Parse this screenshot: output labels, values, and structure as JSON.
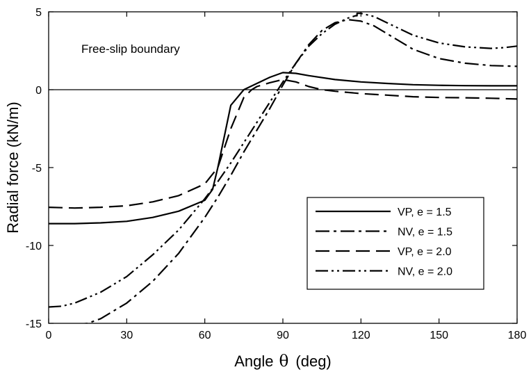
{
  "chart_data": {
    "type": "line",
    "title": "",
    "annotation": "Free-slip boundary",
    "xlabel": {
      "prefix": "Angle",
      "symbol": "θ",
      "suffix": "(deg)"
    },
    "ylabel": "Radial force (kN/m)",
    "xlim": [
      0,
      180
    ],
    "ylim": [
      -15,
      5
    ],
    "xticks": [
      0,
      30,
      60,
      90,
      120,
      150,
      180
    ],
    "yticks": [
      -15,
      -10,
      -5,
      0,
      5
    ],
    "reference_line_y": 0,
    "grid": false,
    "legend_position": "lower-right",
    "series": [
      {
        "name": "VP, e = 1.5",
        "dash": "solid",
        "points": [
          [
            0,
            -8.6
          ],
          [
            10,
            -8.6
          ],
          [
            20,
            -8.55
          ],
          [
            30,
            -8.45
          ],
          [
            40,
            -8.2
          ],
          [
            50,
            -7.8
          ],
          [
            60,
            -7.1
          ],
          [
            63,
            -6.4
          ],
          [
            65,
            -5.0
          ],
          [
            70,
            -1.0
          ],
          [
            75,
            0.0
          ],
          [
            80,
            0.4
          ],
          [
            85,
            0.8
          ],
          [
            90,
            1.1
          ],
          [
            95,
            1.05
          ],
          [
            100,
            0.9
          ],
          [
            110,
            0.65
          ],
          [
            120,
            0.5
          ],
          [
            130,
            0.4
          ],
          [
            140,
            0.32
          ],
          [
            150,
            0.28
          ],
          [
            160,
            0.26
          ],
          [
            170,
            0.25
          ],
          [
            180,
            0.25
          ]
        ]
      },
      {
        "name": "NV, e = 1.5",
        "dash": "dashdot",
        "points": [
          [
            0,
            -15.05
          ],
          [
            5,
            -15.1
          ],
          [
            10,
            -15.1
          ],
          [
            15,
            -15.0
          ],
          [
            20,
            -14.7
          ],
          [
            30,
            -13.7
          ],
          [
            40,
            -12.3
          ],
          [
            50,
            -10.5
          ],
          [
            60,
            -8.2
          ],
          [
            65,
            -6.9
          ],
          [
            70,
            -5.5
          ],
          [
            75,
            -4.0
          ],
          [
            80,
            -2.6
          ],
          [
            85,
            -1.2
          ],
          [
            90,
            0.3
          ],
          [
            95,
            1.7
          ],
          [
            100,
            2.9
          ],
          [
            105,
            3.8
          ],
          [
            110,
            4.3
          ],
          [
            115,
            4.5
          ],
          [
            120,
            4.4
          ],
          [
            125,
            4.1
          ],
          [
            130,
            3.6
          ],
          [
            140,
            2.6
          ],
          [
            150,
            2.0
          ],
          [
            160,
            1.7
          ],
          [
            170,
            1.55
          ],
          [
            180,
            1.5
          ]
        ]
      },
      {
        "name": "VP, e = 2.0",
        "dash": "longdash",
        "points": [
          [
            0,
            -7.55
          ],
          [
            10,
            -7.6
          ],
          [
            20,
            -7.55
          ],
          [
            30,
            -7.45
          ],
          [
            40,
            -7.2
          ],
          [
            50,
            -6.8
          ],
          [
            60,
            -6.05
          ],
          [
            65,
            -5.0
          ],
          [
            70,
            -2.5
          ],
          [
            75,
            -0.5
          ],
          [
            78,
            0.0
          ],
          [
            80,
            0.2
          ],
          [
            85,
            0.45
          ],
          [
            90,
            0.65
          ],
          [
            95,
            0.5
          ],
          [
            100,
            0.2
          ],
          [
            105,
            0.0
          ],
          [
            110,
            -0.1
          ],
          [
            120,
            -0.25
          ],
          [
            130,
            -0.35
          ],
          [
            140,
            -0.45
          ],
          [
            150,
            -0.5
          ],
          [
            160,
            -0.52
          ],
          [
            170,
            -0.55
          ],
          [
            180,
            -0.6
          ]
        ]
      },
      {
        "name": "NV, e = 2.0",
        "dash": "dashdotdot",
        "points": [
          [
            0,
            -13.95
          ],
          [
            5,
            -13.9
          ],
          [
            10,
            -13.7
          ],
          [
            20,
            -13.0
          ],
          [
            30,
            -12.0
          ],
          [
            40,
            -10.6
          ],
          [
            50,
            -9.0
          ],
          [
            60,
            -7.0
          ],
          [
            65,
            -5.9
          ],
          [
            70,
            -4.7
          ],
          [
            75,
            -3.4
          ],
          [
            80,
            -2.1
          ],
          [
            85,
            -0.8
          ],
          [
            90,
            0.5
          ],
          [
            95,
            1.7
          ],
          [
            100,
            2.8
          ],
          [
            105,
            3.6
          ],
          [
            110,
            4.2
          ],
          [
            115,
            4.6
          ],
          [
            118,
            4.75
          ],
          [
            118.5,
            4.75
          ],
          [
            118.5,
            4.9
          ],
          [
            120,
            4.9
          ],
          [
            125,
            4.7
          ],
          [
            130,
            4.3
          ],
          [
            140,
            3.5
          ],
          [
            150,
            3.0
          ],
          [
            160,
            2.75
          ],
          [
            170,
            2.65
          ],
          [
            175,
            2.7
          ],
          [
            180,
            2.8
          ]
        ]
      }
    ]
  }
}
